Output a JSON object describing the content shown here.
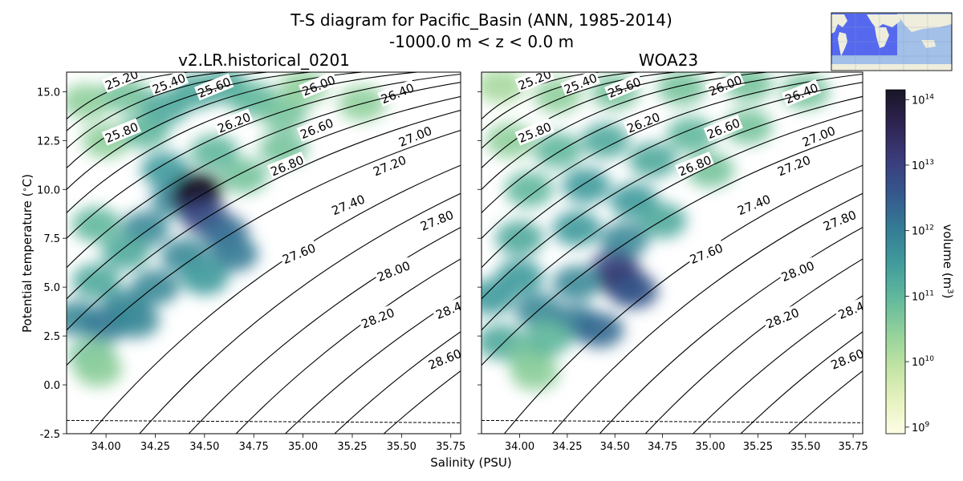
{
  "suptitle": {
    "line1": "T-S diagram for Pacific_Basin (ANN, 1985-2014)",
    "line2": "-1000.0 m < z < 0.0 m"
  },
  "colors": {
    "contour": "#000000",
    "colormap": [
      "#fdfde5",
      "#e5f2be",
      "#bfe2a3",
      "#8fcf9b",
      "#5fb79c",
      "#3f9a9b",
      "#357a95",
      "#35578c",
      "#3b3b7a",
      "#2e2451",
      "#1a1526"
    ]
  },
  "chart_data": [
    {
      "type": "heatmap",
      "title": "v2.LR.historical_0201",
      "xlabel": "Salinity (PSU)",
      "ylabel": "Potential temperature ($^\\circ$C)",
      "xlim": [
        33.8,
        35.8
      ],
      "ylim": [
        -2.5,
        16.0
      ],
      "xticks": [
        "34.00",
        "34.25",
        "34.50",
        "34.75",
        "35.00",
        "35.25",
        "35.50",
        "35.75"
      ],
      "yticks": [
        "-2.5",
        "0.0",
        "2.5",
        "5.0",
        "7.5",
        "10.0",
        "12.5",
        "15.0"
      ],
      "freezing_line": {
        "style": "dashed",
        "points": [
          [
            33.8,
            -1.82
          ],
          [
            35.8,
            -1.94
          ]
        ]
      },
      "density_contours": [
        "25.20",
        "25.40",
        "25.60",
        "25.80",
        "26.00",
        "26.20",
        "26.40",
        "26.60",
        "26.80",
        "27.00",
        "27.20",
        "27.40",
        "27.60",
        "27.80",
        "28.00",
        "28.20",
        "28.4",
        "28.60"
      ],
      "volume_cloud": [
        {
          "S": 33.9,
          "T": 14.5,
          "level": 0.3
        },
        {
          "S": 34.0,
          "T": 12.5,
          "level": 0.3
        },
        {
          "S": 34.1,
          "T": 14.8,
          "level": 0.35
        },
        {
          "S": 34.2,
          "T": 13.0,
          "level": 0.4
        },
        {
          "S": 34.3,
          "T": 14.2,
          "level": 0.45
        },
        {
          "S": 34.45,
          "T": 15.0,
          "level": 0.45
        },
        {
          "S": 34.6,
          "T": 15.3,
          "level": 0.45
        },
        {
          "S": 34.75,
          "T": 14.6,
          "level": 0.4
        },
        {
          "S": 34.9,
          "T": 13.9,
          "level": 0.35
        },
        {
          "S": 35.0,
          "T": 15.2,
          "level": 0.3
        },
        {
          "S": 35.3,
          "T": 14.4,
          "level": 0.3
        },
        {
          "S": 34.9,
          "T": 12.1,
          "level": 0.35
        },
        {
          "S": 34.7,
          "T": 10.7,
          "level": 0.35
        },
        {
          "S": 34.55,
          "T": 11.9,
          "level": 0.4
        },
        {
          "S": 34.3,
          "T": 11.0,
          "level": 0.5
        },
        {
          "S": 34.35,
          "T": 9.5,
          "level": 0.55
        },
        {
          "S": 34.45,
          "T": 9.6,
          "level": 0.9
        },
        {
          "S": 34.47,
          "T": 10.0,
          "level": 1.0
        },
        {
          "S": 34.5,
          "T": 8.6,
          "level": 0.75
        },
        {
          "S": 34.2,
          "T": 8.0,
          "level": 0.55
        },
        {
          "S": 34.6,
          "T": 7.8,
          "level": 0.65
        },
        {
          "S": 34.65,
          "T": 6.7,
          "level": 0.6
        },
        {
          "S": 34.4,
          "T": 6.6,
          "level": 0.55
        },
        {
          "S": 34.1,
          "T": 6.8,
          "level": 0.45
        },
        {
          "S": 33.95,
          "T": 8.2,
          "level": 0.4
        },
        {
          "S": 33.95,
          "T": 5.3,
          "level": 0.45
        },
        {
          "S": 34.25,
          "T": 5.0,
          "level": 0.55
        },
        {
          "S": 34.5,
          "T": 5.5,
          "level": 0.5
        },
        {
          "S": 34.1,
          "T": 4.0,
          "level": 0.55
        },
        {
          "S": 33.85,
          "T": 3.4,
          "level": 0.55
        },
        {
          "S": 34.0,
          "T": 3.1,
          "level": 0.6
        },
        {
          "S": 34.15,
          "T": 3.3,
          "level": 0.55
        },
        {
          "S": 33.93,
          "T": 1.5,
          "level": 0.35
        },
        {
          "S": 33.96,
          "T": 0.8,
          "level": 0.3
        }
      ]
    },
    {
      "type": "heatmap",
      "title": "WOA23",
      "xlabel": "Salinity (PSU)",
      "xlim": [
        33.8,
        35.8
      ],
      "ylim": [
        -2.5,
        16.0
      ],
      "xticks": [
        "34.00",
        "34.25",
        "34.50",
        "34.75",
        "35.00",
        "35.25",
        "35.50",
        "35.75"
      ],
      "freezing_line": {
        "style": "dashed",
        "points": [
          [
            33.8,
            -1.82
          ],
          [
            35.8,
            -1.94
          ]
        ]
      },
      "density_contours": [
        "25.20",
        "25.40",
        "25.60",
        "25.80",
        "26.00",
        "26.20",
        "26.40",
        "26.60",
        "26.80",
        "27.00",
        "27.20",
        "27.40",
        "27.60",
        "27.80",
        "28.00",
        "28.20",
        "28.4",
        "28.60"
      ],
      "volume_cloud": [
        {
          "S": 33.9,
          "T": 15.3,
          "level": 0.25
        },
        {
          "S": 34.2,
          "T": 14.8,
          "level": 0.3
        },
        {
          "S": 34.5,
          "T": 15.0,
          "level": 0.35
        },
        {
          "S": 34.85,
          "T": 15.2,
          "level": 0.35
        },
        {
          "S": 35.2,
          "T": 15.4,
          "level": 0.35
        },
        {
          "S": 35.5,
          "T": 15.0,
          "level": 0.35
        },
        {
          "S": 35.2,
          "T": 13.2,
          "level": 0.35
        },
        {
          "S": 34.9,
          "T": 12.8,
          "level": 0.4
        },
        {
          "S": 35.0,
          "T": 11.0,
          "level": 0.35
        },
        {
          "S": 34.7,
          "T": 11.5,
          "level": 0.45
        },
        {
          "S": 34.45,
          "T": 12.5,
          "level": 0.45
        },
        {
          "S": 34.2,
          "T": 12.0,
          "level": 0.4
        },
        {
          "S": 33.95,
          "T": 12.5,
          "level": 0.3
        },
        {
          "S": 34.05,
          "T": 10.0,
          "level": 0.4
        },
        {
          "S": 34.35,
          "T": 10.2,
          "level": 0.5
        },
        {
          "S": 34.6,
          "T": 9.4,
          "level": 0.5
        },
        {
          "S": 34.75,
          "T": 8.4,
          "level": 0.45
        },
        {
          "S": 34.55,
          "T": 7.4,
          "level": 0.55
        },
        {
          "S": 34.3,
          "T": 8.0,
          "level": 0.5
        },
        {
          "S": 34.0,
          "T": 7.5,
          "level": 0.45
        },
        {
          "S": 34.5,
          "T": 6.0,
          "level": 0.75
        },
        {
          "S": 34.55,
          "T": 5.2,
          "level": 0.85
        },
        {
          "S": 34.6,
          "T": 4.8,
          "level": 0.7
        },
        {
          "S": 34.3,
          "T": 5.2,
          "level": 0.55
        },
        {
          "S": 34.0,
          "T": 5.5,
          "level": 0.5
        },
        {
          "S": 33.85,
          "T": 4.5,
          "level": 0.5
        },
        {
          "S": 34.1,
          "T": 3.8,
          "level": 0.55
        },
        {
          "S": 34.3,
          "T": 3.2,
          "level": 0.6
        },
        {
          "S": 34.42,
          "T": 2.8,
          "level": 0.65
        },
        {
          "S": 33.9,
          "T": 2.2,
          "level": 0.45
        },
        {
          "S": 34.05,
          "T": 1.5,
          "level": 0.35
        },
        {
          "S": 34.08,
          "T": 0.6,
          "level": 0.3
        },
        {
          "S": 34.15,
          "T": 2.4,
          "level": 0.4
        }
      ]
    }
  ],
  "colorbar": {
    "label": "volume (m$^3$)",
    "ticks": [
      {
        "base": "10",
        "exp": "14"
      },
      {
        "base": "10",
        "exp": "13"
      },
      {
        "base": "10",
        "exp": "12"
      },
      {
        "base": "10",
        "exp": "11"
      },
      {
        "base": "10",
        "exp": "10"
      },
      {
        "base": "10",
        "exp": "9"
      }
    ],
    "range_exp": [
      8.9,
      14.15
    ]
  },
  "inset_map": {
    "colors": {
      "land": "#efeedd",
      "ocean": "#a3c0e8",
      "region": "#3c4cf0",
      "grid": "#8899bb"
    }
  }
}
